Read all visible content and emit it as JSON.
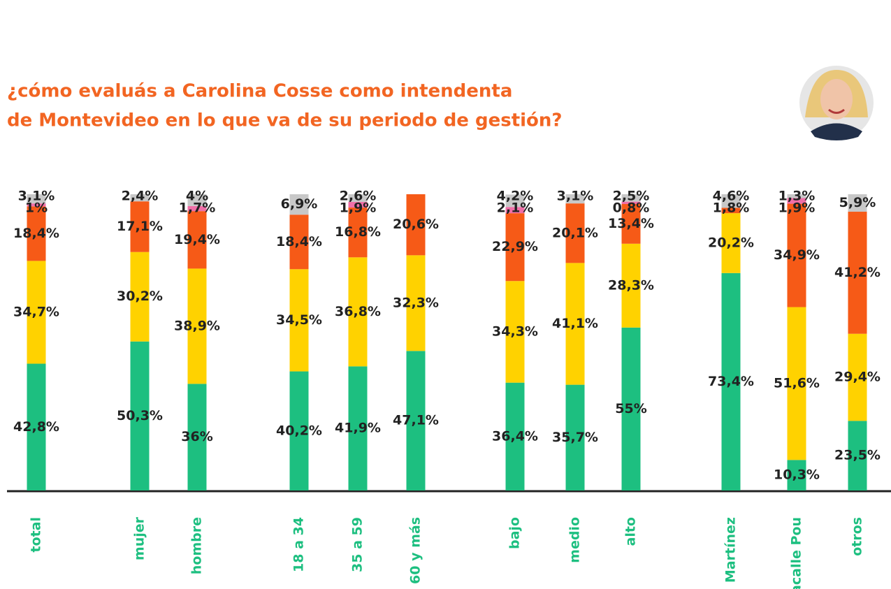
{
  "chart_data": {
    "type": "stacked_bar",
    "title": [
      "¿cómo evaluás a Carolina Cosse como intendenta",
      "de Montevideo en lo que va de su periodo de gestión?"
    ],
    "categories": [
      "total",
      "mujer",
      "hombre",
      "18 a 34",
      "35 a 59",
      "60 y más",
      "bajo",
      "medio",
      "alto",
      "Martínez",
      "Lacalle Pou",
      "otros"
    ],
    "ylim": [
      0,
      100
    ],
    "series": [
      {
        "color": "#1dbf80",
        "values": [
          42.8,
          50.3,
          36,
          40.2,
          41.9,
          47.1,
          36.4,
          35.7,
          55,
          73.4,
          10.3,
          23.5
        ],
        "value_labels": [
          "42,8%",
          "50,3%",
          "36%",
          "40,2%",
          "41,9%",
          "47,1%",
          "36,4%",
          "35,7%",
          "55%",
          "73,4%",
          "10,3%",
          "23,5%"
        ]
      },
      {
        "color": "#ffd200",
        "values": [
          34.7,
          30.2,
          38.9,
          34.5,
          36.8,
          32.3,
          34.3,
          41.1,
          28.3,
          20.2,
          51.6,
          29.4
        ],
        "value_labels": [
          "34,7%",
          "30,2%",
          "38,9%",
          "34,5%",
          "36,8%",
          "32,3%",
          "34,3%",
          "41,1%",
          "28,3%",
          "20,2%",
          "51,6%",
          "29,4%"
        ]
      },
      {
        "color": "#f65a17",
        "values": [
          18.4,
          17.1,
          19.4,
          18.4,
          16.8,
          20.6,
          22.9,
          20.1,
          13.4,
          1.8,
          34.9,
          41.2
        ],
        "value_labels": [
          "18,4%",
          "17,1%",
          "19,4%",
          "18,4%",
          "16,8%",
          "20,6%",
          "22,9%",
          "20,1%",
          "13,4%",
          "1,8%",
          "34,9%",
          "41,2%"
        ]
      },
      {
        "color": "#f06fa8",
        "values": [
          1,
          null,
          1.7,
          null,
          1.9,
          null,
          2.1,
          null,
          0.8,
          null,
          1.9,
          null
        ],
        "value_labels": [
          "1%",
          null,
          "1,7%",
          null,
          "1,9%",
          null,
          "2,1%",
          null,
          "0,8%",
          null,
          "1,9%",
          null
        ]
      },
      {
        "color": "#c8c8c8",
        "values": [
          3.1,
          2.4,
          4,
          6.9,
          2.6,
          null,
          4.2,
          3.1,
          2.5,
          4.6,
          1.3,
          5.9
        ],
        "value_labels": [
          "3,1%",
          "2,4%",
          "4%",
          "6,9%",
          "2,6%",
          null,
          "4,2%",
          "3,1%",
          "2,5%",
          "4,6%",
          "1,3%",
          "5,9%"
        ]
      }
    ]
  }
}
